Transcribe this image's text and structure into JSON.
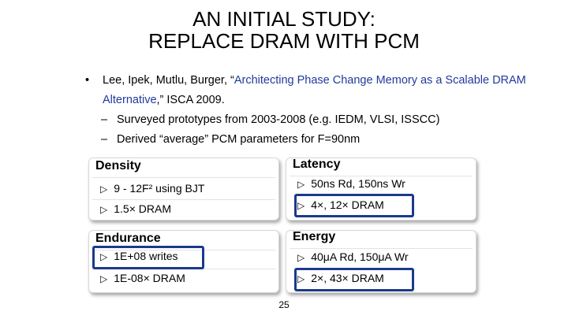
{
  "title": {
    "line1": "AN INITIAL STUDY:",
    "line2": "REPLACE DRAM WITH PCM"
  },
  "bullet": {
    "marker": "•",
    "authors": "Lee, Ipek, Mutlu, Burger, “",
    "paper_title": "Architecting Phase Change Memory as a Scalable DRAM Alternative",
    "venue": ",” ISCA 2009."
  },
  "subbullets": [
    {
      "marker": "–",
      "text": "Surveyed prototypes from 2003-2008 (e.g. IEDM, VLSI, ISSCC)"
    },
    {
      "marker": "–",
      "text": "Derived “average” PCM parameters for F=90nm"
    }
  ],
  "panels": {
    "density": {
      "title": "Density",
      "items": [
        "9 - 12F² using BJT",
        "1.5× DRAM"
      ]
    },
    "latency": {
      "title": "Latency",
      "items": [
        "50ns Rd, 150ns Wr",
        "4×, 12× DRAM"
      ]
    },
    "endurance": {
      "title": "Endurance",
      "items": [
        "1E+08 writes",
        "1E-08× DRAM"
      ]
    },
    "energy": {
      "title": "Energy",
      "items": [
        "40μA Rd, 150μA Wr",
        "2×, 43× DRAM"
      ]
    }
  },
  "item_marker": "▷",
  "colors": {
    "highlight": "#1a3a8a",
    "title_blue": "#1f3a9c"
  },
  "page_number": "25"
}
